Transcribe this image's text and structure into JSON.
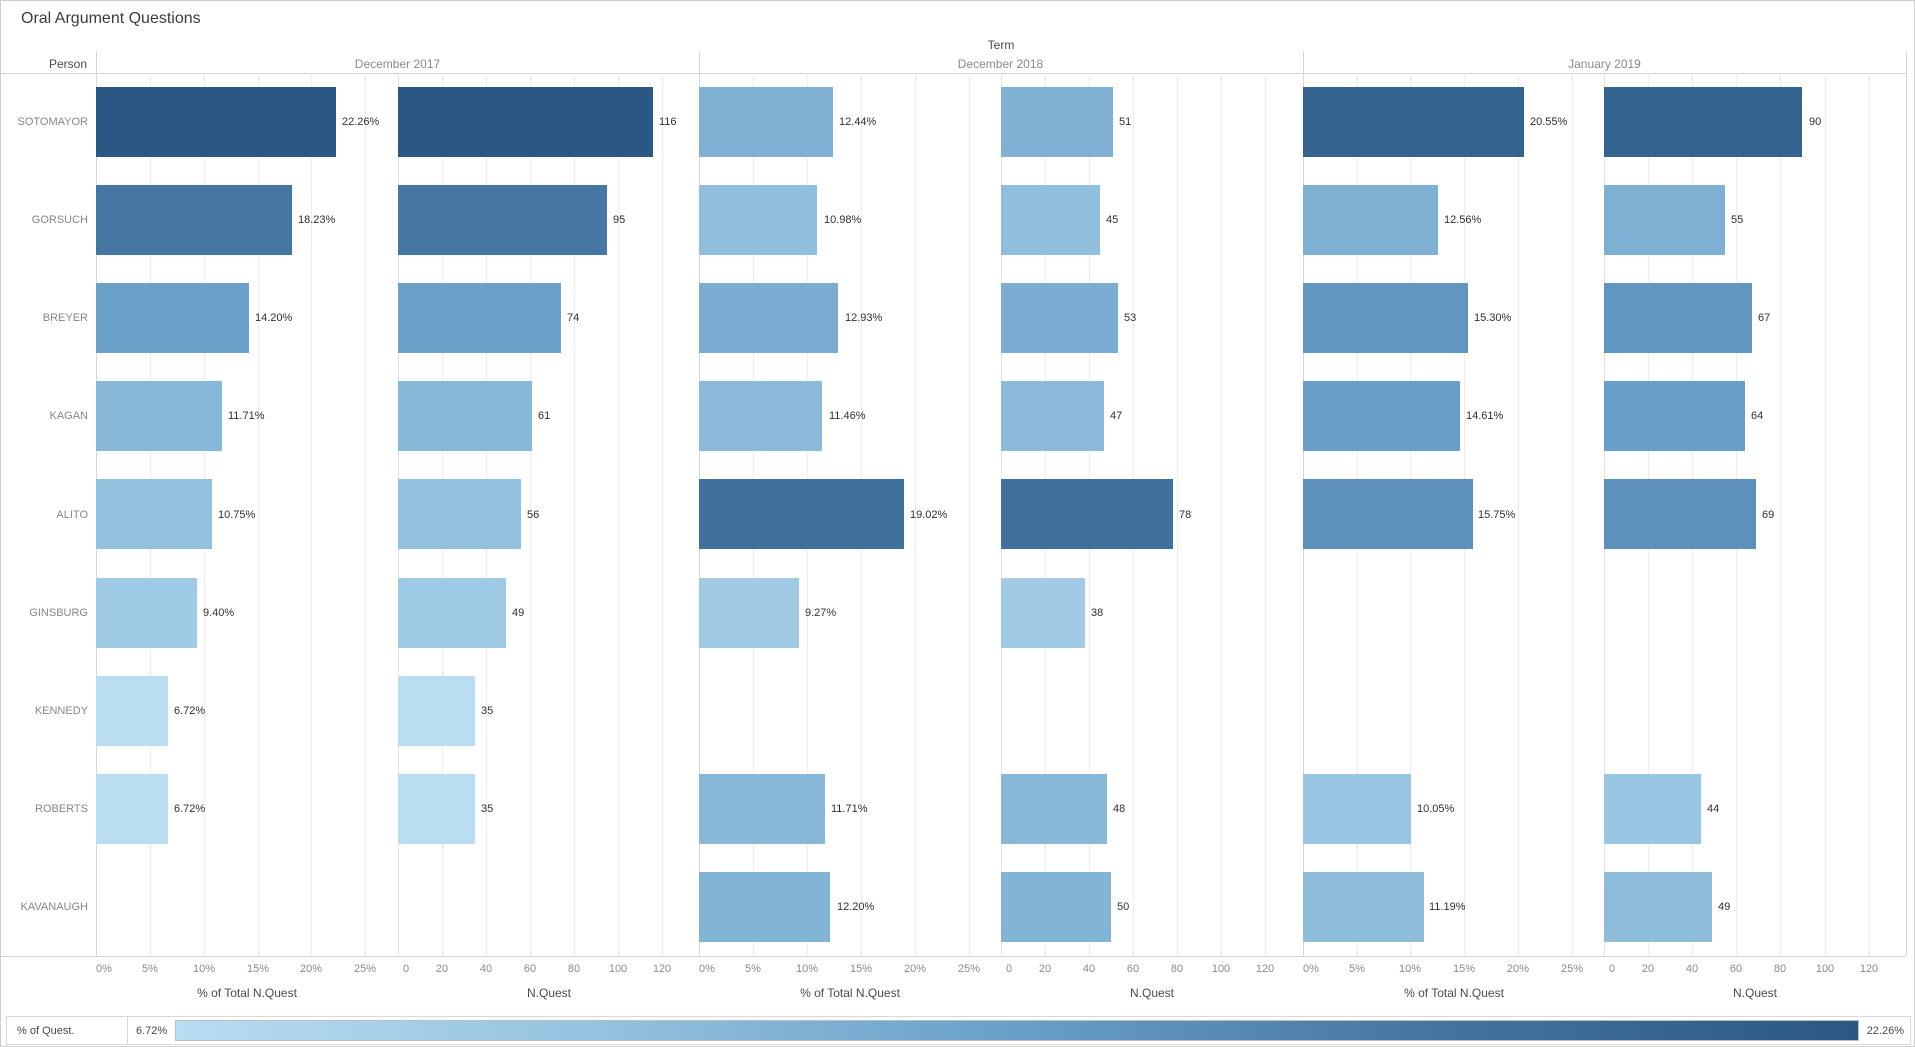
{
  "title": "Oral Argument Questions",
  "header": {
    "dimension_label": "Term",
    "row_dimension_label": "Person",
    "groups": [
      "December 2017",
      "December 2018",
      "January 2019"
    ]
  },
  "axes": {
    "pct": {
      "title": "% of Total N.Quest",
      "ticks": [
        0,
        5,
        10,
        15,
        20,
        25
      ],
      "tick_labels": [
        "0%",
        "5%",
        "10%",
        "15%",
        "20%",
        "25%"
      ],
      "max": 28
    },
    "n": {
      "title": "N.Quest",
      "ticks": [
        0,
        20,
        40,
        60,
        80,
        100,
        120
      ],
      "tick_labels": [
        "0",
        "20",
        "40",
        "60",
        "80",
        "100",
        "120"
      ],
      "max": 137
    }
  },
  "legend": {
    "title": "% of Quest.",
    "min_label": "6.72%",
    "max_label": "22.26%",
    "min_value": 6.72,
    "max_value": 22.26,
    "color_stops": [
      "#b9ddf1",
      "#94c2df",
      "#699fc8",
      "#4475a1",
      "#2a5783"
    ]
  },
  "chart_data": {
    "type": "bar",
    "orientation": "horizontal",
    "color_encoding": "% of Quest.",
    "categories": [
      "SOTOMAYOR",
      "GORSUCH",
      "BREYER",
      "KAGAN",
      "ALITO",
      "GINSBURG",
      "KENNEDY",
      "ROBERTS",
      "KAVANAUGH"
    ],
    "groups": [
      "December 2017",
      "December 2018",
      "January 2019"
    ],
    "measures": [
      "% of Total N.Quest",
      "N.Quest"
    ],
    "series": [
      {
        "person": "SOTOMAYOR",
        "values": [
          {
            "pct": 22.26,
            "pct_label": "22.26%",
            "n": 116,
            "n_label": "116"
          },
          {
            "pct": 12.44,
            "pct_label": "12.44%",
            "n": 51,
            "n_label": "51"
          },
          {
            "pct": 20.55,
            "pct_label": "20.55%",
            "n": 90,
            "n_label": "90"
          }
        ]
      },
      {
        "person": "GORSUCH",
        "values": [
          {
            "pct": 18.23,
            "pct_label": "18.23%",
            "n": 95,
            "n_label": "95"
          },
          {
            "pct": 10.98,
            "pct_label": "10.98%",
            "n": 45,
            "n_label": "45"
          },
          {
            "pct": 12.56,
            "pct_label": "12.56%",
            "n": 55,
            "n_label": "55"
          }
        ]
      },
      {
        "person": "BREYER",
        "values": [
          {
            "pct": 14.2,
            "pct_label": "14.20%",
            "n": 74,
            "n_label": "74"
          },
          {
            "pct": 12.93,
            "pct_label": "12.93%",
            "n": 53,
            "n_label": "53"
          },
          {
            "pct": 15.3,
            "pct_label": "15.30%",
            "n": 67,
            "n_label": "67"
          }
        ]
      },
      {
        "person": "KAGAN",
        "values": [
          {
            "pct": 11.71,
            "pct_label": "11.71%",
            "n": 61,
            "n_label": "61"
          },
          {
            "pct": 11.46,
            "pct_label": "11.46%",
            "n": 47,
            "n_label": "47"
          },
          {
            "pct": 14.61,
            "pct_label": "14.61%",
            "n": 64,
            "n_label": "64"
          }
        ]
      },
      {
        "person": "ALITO",
        "values": [
          {
            "pct": 10.75,
            "pct_label": "10.75%",
            "n": 56,
            "n_label": "56"
          },
          {
            "pct": 19.02,
            "pct_label": "19.02%",
            "n": 78,
            "n_label": "78"
          },
          {
            "pct": 15.75,
            "pct_label": "15.75%",
            "n": 69,
            "n_label": "69"
          }
        ]
      },
      {
        "person": "GINSBURG",
        "values": [
          {
            "pct": 9.4,
            "pct_label": "9.40%",
            "n": 49,
            "n_label": "49"
          },
          {
            "pct": 9.27,
            "pct_label": "9.27%",
            "n": 38,
            "n_label": "38"
          },
          null
        ]
      },
      {
        "person": "KENNEDY",
        "values": [
          {
            "pct": 6.72,
            "pct_label": "6.72%",
            "n": 35,
            "n_label": "35"
          },
          null,
          null
        ]
      },
      {
        "person": "ROBERTS",
        "values": [
          {
            "pct": 6.72,
            "pct_label": "6.72%",
            "n": 35,
            "n_label": "35"
          },
          {
            "pct": 11.71,
            "pct_label": "11.71%",
            "n": 48,
            "n_label": "48"
          },
          {
            "pct": 10.05,
            "pct_label": "10.05%",
            "n": 44,
            "n_label": "44"
          }
        ]
      },
      {
        "person": "KAVANAUGH",
        "values": [
          null,
          {
            "pct": 12.2,
            "pct_label": "12.20%",
            "n": 50,
            "n_label": "50"
          },
          {
            "pct": 11.19,
            "pct_label": "11.19%",
            "n": 49,
            "n_label": "49"
          }
        ]
      }
    ]
  }
}
